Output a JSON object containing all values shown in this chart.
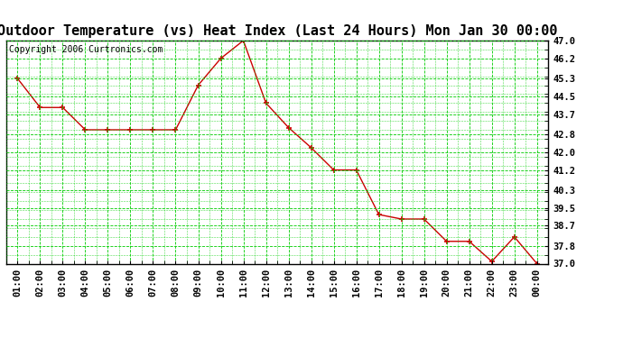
{
  "title": "Outdoor Temperature (vs) Heat Index (Last 24 Hours) Mon Jan 30 00:00",
  "copyright_text": "Copyright 2006 Curtronics.com",
  "x_labels": [
    "01:00",
    "02:00",
    "03:00",
    "04:00",
    "05:00",
    "06:00",
    "07:00",
    "08:00",
    "09:00",
    "10:00",
    "11:00",
    "12:00",
    "13:00",
    "14:00",
    "15:00",
    "16:00",
    "17:00",
    "18:00",
    "19:00",
    "20:00",
    "21:00",
    "22:00",
    "23:00",
    "00:00"
  ],
  "y_values": [
    45.3,
    44.0,
    44.0,
    43.0,
    43.0,
    43.0,
    43.0,
    43.0,
    45.0,
    46.2,
    47.0,
    44.2,
    43.1,
    42.2,
    41.2,
    41.2,
    39.2,
    39.0,
    39.0,
    38.0,
    38.0,
    37.1,
    38.2,
    37.0
  ],
  "line_color": "#cc0000",
  "marker_color": "#cc0000",
  "background_color": "#ffffff",
  "plot_bg_color": "#ffffff",
  "grid_color": "#00cc00",
  "y_min": 37.0,
  "y_max": 47.0,
  "y_ticks": [
    37.0,
    37.8,
    38.7,
    39.5,
    40.3,
    41.2,
    42.0,
    42.8,
    43.7,
    44.5,
    45.3,
    46.2,
    47.0
  ],
  "title_fontsize": 11,
  "copyright_fontsize": 7,
  "tick_fontsize": 7.5
}
